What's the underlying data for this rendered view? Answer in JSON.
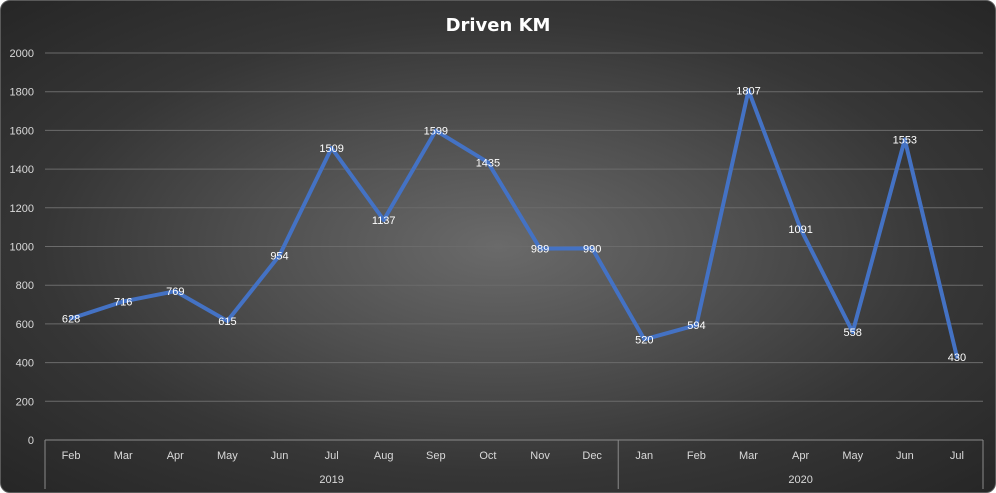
{
  "chart_data": {
    "type": "line",
    "title": "Driven  KM",
    "xlabel": "",
    "ylabel": "",
    "ylim": [
      0,
      2000
    ],
    "y_ticks": [
      0,
      200,
      400,
      600,
      800,
      1000,
      1200,
      1400,
      1600,
      1800,
      2000
    ],
    "categories": [
      "Feb",
      "Mar",
      "Apr",
      "May",
      "Jun",
      "Jul",
      "Aug",
      "Sep",
      "Oct",
      "Nov",
      "Dec",
      "Jan",
      "Feb",
      "Mar",
      "Apr",
      "May",
      "Jun",
      "Jul"
    ],
    "year_groups": [
      {
        "label": "2019",
        "count": 11
      },
      {
        "label": "2020",
        "count": 7
      }
    ],
    "series": [
      {
        "values": [
          628,
          716,
          769,
          615,
          954,
          1509,
          1137,
          1599,
          1435,
          989,
          990,
          520,
          594,
          1807,
          1091,
          558,
          1553,
          430
        ],
        "color": "#4472c4"
      }
    ],
    "grid": true,
    "legend": "none",
    "data_labels": true
  }
}
